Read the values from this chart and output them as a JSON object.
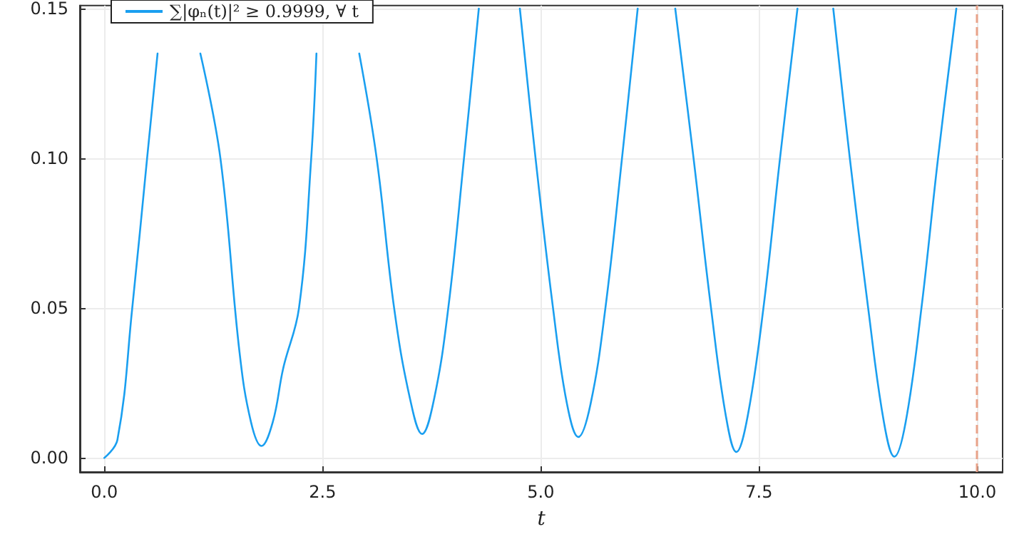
{
  "chart_data": {
    "type": "line",
    "xlabel": "t",
    "x": [
      0,
      0.15,
      0.32,
      0.49,
      0.61,
      0.92,
      1.1,
      1.33,
      1.55,
      1.68,
      1.8,
      1.93,
      2.05,
      2.23,
      2.37,
      2.43,
      2.72,
      2.92,
      3.12,
      3.32,
      3.5,
      3.64,
      3.78,
      3.94,
      4.12,
      4.29,
      4.52,
      4.76,
      4.94,
      5.14,
      5.3,
      5.43,
      5.57,
      5.74,
      5.93,
      6.11,
      6.33,
      6.54,
      6.75,
      6.95,
      7.12,
      7.24,
      7.37,
      7.55,
      7.74,
      7.94,
      8.15,
      8.35,
      8.54,
      8.75,
      8.93,
      9.05,
      9.18,
      9.36,
      9.55,
      9.76
    ],
    "series": [
      {
        "name": "∑|φₙ(t)|² ≥ 0.9999, ∀ t",
        "color": "#1a9ff0",
        "values": [
          0,
          0.006,
          0.05,
          0.1,
          0.135,
          null,
          0.135,
          0.1,
          0.035,
          0.012,
          0.004,
          0.012,
          0.03,
          0.05,
          0.1,
          0.135,
          null,
          0.135,
          0.1,
          0.05,
          0.02,
          0.008,
          0.02,
          0.05,
          0.1,
          0.15,
          null,
          0.15,
          0.1,
          0.05,
          0.018,
          0.007,
          0.018,
          0.05,
          0.1,
          0.15,
          null,
          0.15,
          0.1,
          0.05,
          0.014,
          0.002,
          0.014,
          0.05,
          0.1,
          0.15,
          null,
          0.15,
          0.1,
          0.05,
          0.012,
          0.0004,
          0.012,
          0.05,
          0.1,
          0.15
        ]
      }
    ],
    "xlim": [
      -0.28,
      10.29
    ],
    "xticks": [
      {
        "value": 0,
        "label": "0.0"
      },
      2.5,
      {
        "value": 5,
        "label": "5.0"
      },
      7.5,
      {
        "value": 10,
        "label": "10.0"
      }
    ],
    "ylim": [
      -0.0047,
      0.151
    ],
    "yticks": [
      {
        "value": 0,
        "label": "0.00"
      },
      0.05,
      {
        "value": 0.1,
        "label": "0.10"
      },
      {
        "value": 0.15,
        "label": "0.15"
      }
    ],
    "ref_lines": [
      {
        "axis": "x",
        "value": 10,
        "color": "#e9a38a",
        "line_style": "dashed"
      }
    ],
    "grid": true,
    "legend": "top left",
    "line_style": "solid",
    "marker": "none"
  }
}
